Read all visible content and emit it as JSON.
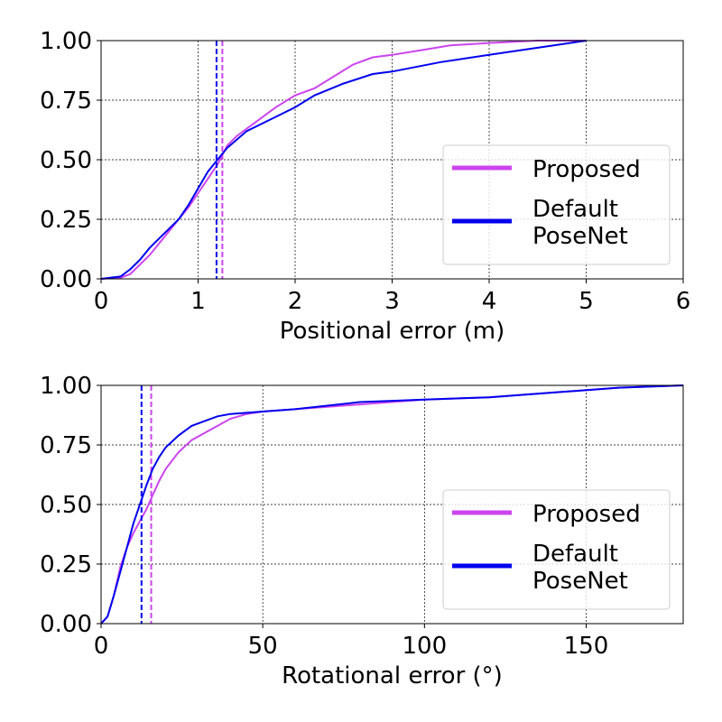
{
  "chart_data": [
    {
      "type": "line",
      "xlabel": "Positional error (m)",
      "xlim": [
        0,
        6
      ],
      "ylim": [
        0,
        1
      ],
      "xticks": [
        0,
        1,
        2,
        3,
        4,
        5,
        6
      ],
      "yticks": [
        {
          "value": 0,
          "label": "0.00"
        },
        {
          "value": 0.25,
          "label": "0.25"
        },
        {
          "value": 0.5,
          "label": "0.50"
        },
        {
          "value": 0.75,
          "label": "0.75"
        },
        {
          "value": 1,
          "label": "1.00"
        }
      ],
      "grid": true,
      "legend": "lower right",
      "series": [
        {
          "name": "Proposed",
          "color": "#cc44ee",
          "median": 1.25,
          "x": [
            0,
            0.2,
            0.3,
            0.5,
            0.7,
            0.9,
            1.0,
            1.1,
            1.2,
            1.3,
            1.4,
            1.6,
            1.8,
            2.0,
            2.2,
            2.4,
            2.6,
            2.8,
            3.0,
            3.3,
            3.6,
            4.0,
            4.5,
            5.0
          ],
          "values": [
            0,
            0.005,
            0.02,
            0.1,
            0.2,
            0.3,
            0.36,
            0.42,
            0.48,
            0.56,
            0.6,
            0.66,
            0.72,
            0.77,
            0.8,
            0.85,
            0.9,
            0.93,
            0.94,
            0.96,
            0.98,
            0.99,
            1.0,
            1.0
          ]
        },
        {
          "name": "Default PoseNet",
          "color": "#0000ee",
          "median": 1.19,
          "x": [
            0,
            0.2,
            0.3,
            0.4,
            0.5,
            0.6,
            0.8,
            0.9,
            1.0,
            1.1,
            1.2,
            1.3,
            1.5,
            1.8,
            2.0,
            2.2,
            2.5,
            2.8,
            3.0,
            3.5,
            4.0,
            4.5,
            5.0
          ],
          "values": [
            0,
            0.01,
            0.04,
            0.08,
            0.13,
            0.17,
            0.25,
            0.31,
            0.38,
            0.45,
            0.5,
            0.55,
            0.62,
            0.68,
            0.72,
            0.77,
            0.82,
            0.86,
            0.87,
            0.91,
            0.94,
            0.97,
            1.0
          ]
        }
      ]
    },
    {
      "type": "line",
      "xlabel": "Rotational error (°)",
      "xlim": [
        0,
        180
      ],
      "ylim": [
        0,
        1
      ],
      "xticks": [
        0,
        50,
        100,
        150
      ],
      "yticks": [
        {
          "value": 0,
          "label": "0.00"
        },
        {
          "value": 0.25,
          "label": "0.25"
        },
        {
          "value": 0.5,
          "label": "0.50"
        },
        {
          "value": 0.75,
          "label": "0.75"
        },
        {
          "value": 1,
          "label": "1.00"
        }
      ],
      "grid": true,
      "legend": "lower right",
      "series": [
        {
          "name": "Proposed",
          "color": "#cc44ee",
          "median": 15.5,
          "x": [
            0,
            2,
            4,
            6,
            8,
            10,
            12,
            14,
            16,
            18,
            20,
            24,
            28,
            32,
            36,
            40,
            45,
            50,
            60,
            80,
            100,
            120,
            140,
            160,
            180
          ],
          "values": [
            0,
            0.03,
            0.12,
            0.24,
            0.32,
            0.38,
            0.43,
            0.48,
            0.54,
            0.6,
            0.65,
            0.72,
            0.77,
            0.8,
            0.83,
            0.86,
            0.88,
            0.89,
            0.9,
            0.92,
            0.94,
            0.95,
            0.97,
            0.99,
            1.0
          ]
        },
        {
          "name": "Default PoseNet",
          "color": "#0000ee",
          "median": 12.5,
          "x": [
            0,
            2,
            4,
            6,
            8,
            10,
            12,
            14,
            16,
            18,
            20,
            24,
            28,
            32,
            36,
            40,
            50,
            60,
            80,
            100,
            120,
            140,
            160,
            180
          ],
          "values": [
            0,
            0.03,
            0.12,
            0.22,
            0.32,
            0.42,
            0.5,
            0.58,
            0.65,
            0.7,
            0.74,
            0.79,
            0.83,
            0.85,
            0.87,
            0.88,
            0.89,
            0.9,
            0.93,
            0.94,
            0.95,
            0.97,
            0.99,
            1.0
          ]
        }
      ]
    }
  ]
}
